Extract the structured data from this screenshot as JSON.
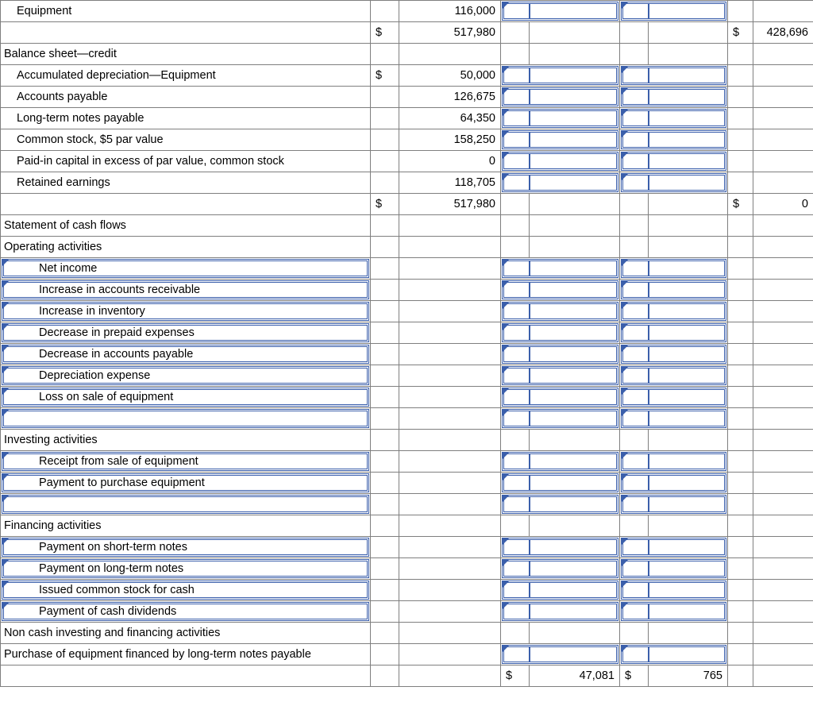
{
  "colors": {
    "grid": "#7f7f7f",
    "input_border": "#3b5fab",
    "text": "#000000",
    "background": "#ffffff"
  },
  "rows": [
    {
      "label": "Equipment",
      "indent": 1,
      "c1_val": "116,000",
      "c2_input": true,
      "c3_input": true
    },
    {
      "label": "",
      "c1_sym": "$",
      "c1_val": "517,980",
      "c4_sym": "$",
      "c4_val": "428,696"
    },
    {
      "label": "Balance sheet—credit"
    },
    {
      "label": "Accumulated depreciation—Equipment",
      "indent": 1,
      "c1_sym": "$",
      "c1_val": "50,000",
      "c2_input": true,
      "c3_input": true
    },
    {
      "label": "Accounts payable",
      "indent": 1,
      "c1_val": "126,675",
      "c2_input": true,
      "c3_input": true
    },
    {
      "label": "Long-term notes payable",
      "indent": 1,
      "c1_val": "64,350",
      "c2_input": true,
      "c3_input": true
    },
    {
      "label": "Common stock, $5 par value",
      "indent": 1,
      "c1_val": "158,250",
      "c2_input": true,
      "c3_input": true
    },
    {
      "label": "Paid-in capital in excess of par value, common stock",
      "indent": 1,
      "c1_val": "0",
      "c2_input": true,
      "c3_input": true
    },
    {
      "label": "Retained earnings",
      "indent": 1,
      "c1_val": "118,705",
      "c2_input": true,
      "c3_input": true
    },
    {
      "label": "",
      "c1_sym": "$",
      "c1_val": "517,980",
      "c4_sym": "$",
      "c4_val": "0"
    },
    {
      "label": "Statement of cash flows"
    },
    {
      "label": "Operating activities"
    },
    {
      "label": "Net income",
      "indent": 2,
      "label_input": true,
      "c2_input": true,
      "c3_input": true
    },
    {
      "label": "Increase in accounts receivable",
      "indent": 2,
      "label_input": true,
      "c2_input": true,
      "c3_input": true
    },
    {
      "label": "Increase in inventory",
      "indent": 2,
      "label_input": true,
      "c2_input": true,
      "c3_input": true
    },
    {
      "label": "Decrease in prepaid expenses",
      "indent": 2,
      "label_input": true,
      "c2_input": true,
      "c3_input": true
    },
    {
      "label": "Decrease in accounts payable",
      "indent": 2,
      "label_input": true,
      "c2_input": true,
      "c3_input": true
    },
    {
      "label": "Depreciation expense",
      "indent": 2,
      "label_input": true,
      "c2_input": true,
      "c3_input": true
    },
    {
      "label": "Loss on sale of equipment",
      "indent": 2,
      "label_input": true,
      "c2_input": true,
      "c3_input": true
    },
    {
      "label": "",
      "indent": 2,
      "label_input": true,
      "c2_input": true,
      "c3_input": true
    },
    {
      "label": "Investing activities"
    },
    {
      "label": "Receipt from sale of equipment",
      "indent": 2,
      "label_input": true,
      "c2_input": true,
      "c3_input": true
    },
    {
      "label": "Payment to purchase equipment",
      "indent": 2,
      "label_input": true,
      "c2_input": true,
      "c3_input": true
    },
    {
      "label": "",
      "indent": 2,
      "label_input": true,
      "c2_input": true,
      "c3_input": true
    },
    {
      "label": "Financing activities"
    },
    {
      "label": "Payment on short-term notes",
      "indent": 2,
      "label_input": true,
      "c2_input": true,
      "c3_input": true
    },
    {
      "label": "Payment on long-term notes",
      "indent": 2,
      "label_input": true,
      "c2_input": true,
      "c3_input": true
    },
    {
      "label": "Issued common stock for cash",
      "indent": 2,
      "label_input": true,
      "c2_input": true,
      "c3_input": true
    },
    {
      "label": "Payment of cash dividends",
      "indent": 2,
      "label_input": true,
      "c2_input": true,
      "c3_input": true
    },
    {
      "label": "Non cash investing and financing activities"
    },
    {
      "label": "Purchase of equipment financed by long-term notes payable",
      "c2_input": true,
      "c3_input": true
    },
    {
      "label": "",
      "c2_sym": "$",
      "c2_val": "47,081",
      "c3_sym": "$",
      "c3_val": "765"
    }
  ]
}
